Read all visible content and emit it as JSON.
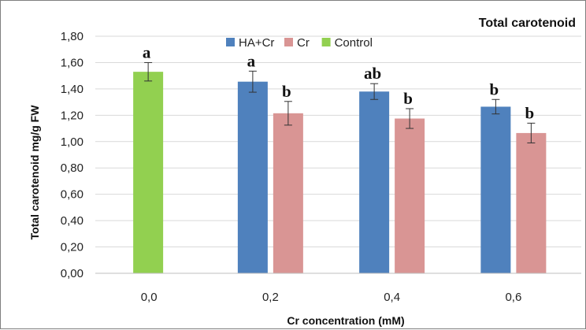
{
  "chart_data": {
    "type": "bar",
    "title": "Total carotenoid",
    "xlabel": "Cr concentration (mM)",
    "ylabel": "Total carotenoid mg/g FW",
    "ylim": [
      0,
      1.8
    ],
    "yticks": [
      "0,00",
      "0,20",
      "0,40",
      "0,60",
      "0,80",
      "1,00",
      "1,20",
      "1,40",
      "1,60",
      "1,80"
    ],
    "categories": [
      "0,0",
      "0,2",
      "0,4",
      "0,6"
    ],
    "grid": true,
    "legend_position": "top",
    "series": [
      {
        "name": "HA+Cr",
        "color": "#4f81bd",
        "values": [
          null,
          1.455,
          1.38,
          1.265
        ],
        "errors": [
          null,
          0.08,
          0.06,
          0.055
        ],
        "labels": [
          null,
          "a",
          "ab",
          "b"
        ]
      },
      {
        "name": "Cr",
        "color": "#d99594",
        "values": [
          null,
          1.215,
          1.175,
          1.065
        ],
        "errors": [
          null,
          0.09,
          0.075,
          0.075
        ],
        "labels": [
          null,
          "b",
          "b",
          "b"
        ]
      },
      {
        "name": "Control",
        "color": "#92d050",
        "values": [
          1.53,
          null,
          null,
          null
        ],
        "errors": [
          0.07,
          null,
          null,
          null
        ],
        "labels": [
          "a",
          null,
          null,
          null
        ]
      }
    ]
  }
}
